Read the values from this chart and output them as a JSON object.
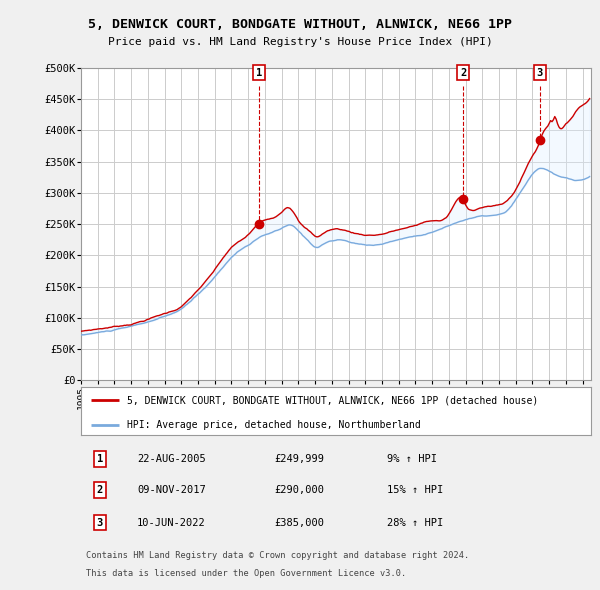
{
  "title": "5, DENWICK COURT, BONDGATE WITHOUT, ALNWICK, NE66 1PP",
  "subtitle": "Price paid vs. HM Land Registry's House Price Index (HPI)",
  "ylabel_ticks": [
    "£0",
    "£50K",
    "£100K",
    "£150K",
    "£200K",
    "£250K",
    "£300K",
    "£350K",
    "£400K",
    "£450K",
    "£500K"
  ],
  "ylim": [
    0,
    500000
  ],
  "ytick_vals": [
    0,
    50000,
    100000,
    150000,
    200000,
    250000,
    300000,
    350000,
    400000,
    450000,
    500000
  ],
  "xlim_start": 1995.0,
  "xlim_end": 2025.5,
  "background_color": "#f0f0f0",
  "plot_bg_color": "#ffffff",
  "grid_color": "#cccccc",
  "red_color": "#cc0000",
  "blue_color": "#7aaadd",
  "fill_color": "#ddeeff",
  "sale1_x": 2005.644,
  "sale1_y": 249999,
  "sale2_x": 2017.856,
  "sale2_y": 290000,
  "sale3_x": 2022.44,
  "sale3_y": 385000,
  "legend_line1": "5, DENWICK COURT, BONDGATE WITHOUT, ALNWICK, NE66 1PP (detached house)",
  "legend_line2": "HPI: Average price, detached house, Northumberland",
  "table_rows": [
    [
      "1",
      "22-AUG-2005",
      "£249,999",
      "9% ↑ HPI"
    ],
    [
      "2",
      "09-NOV-2017",
      "£290,000",
      "15% ↑ HPI"
    ],
    [
      "3",
      "10-JUN-2022",
      "£385,000",
      "28% ↑ HPI"
    ]
  ],
  "footnote1": "Contains HM Land Registry data © Crown copyright and database right 2024.",
  "footnote2": "This data is licensed under the Open Government Licence v3.0."
}
